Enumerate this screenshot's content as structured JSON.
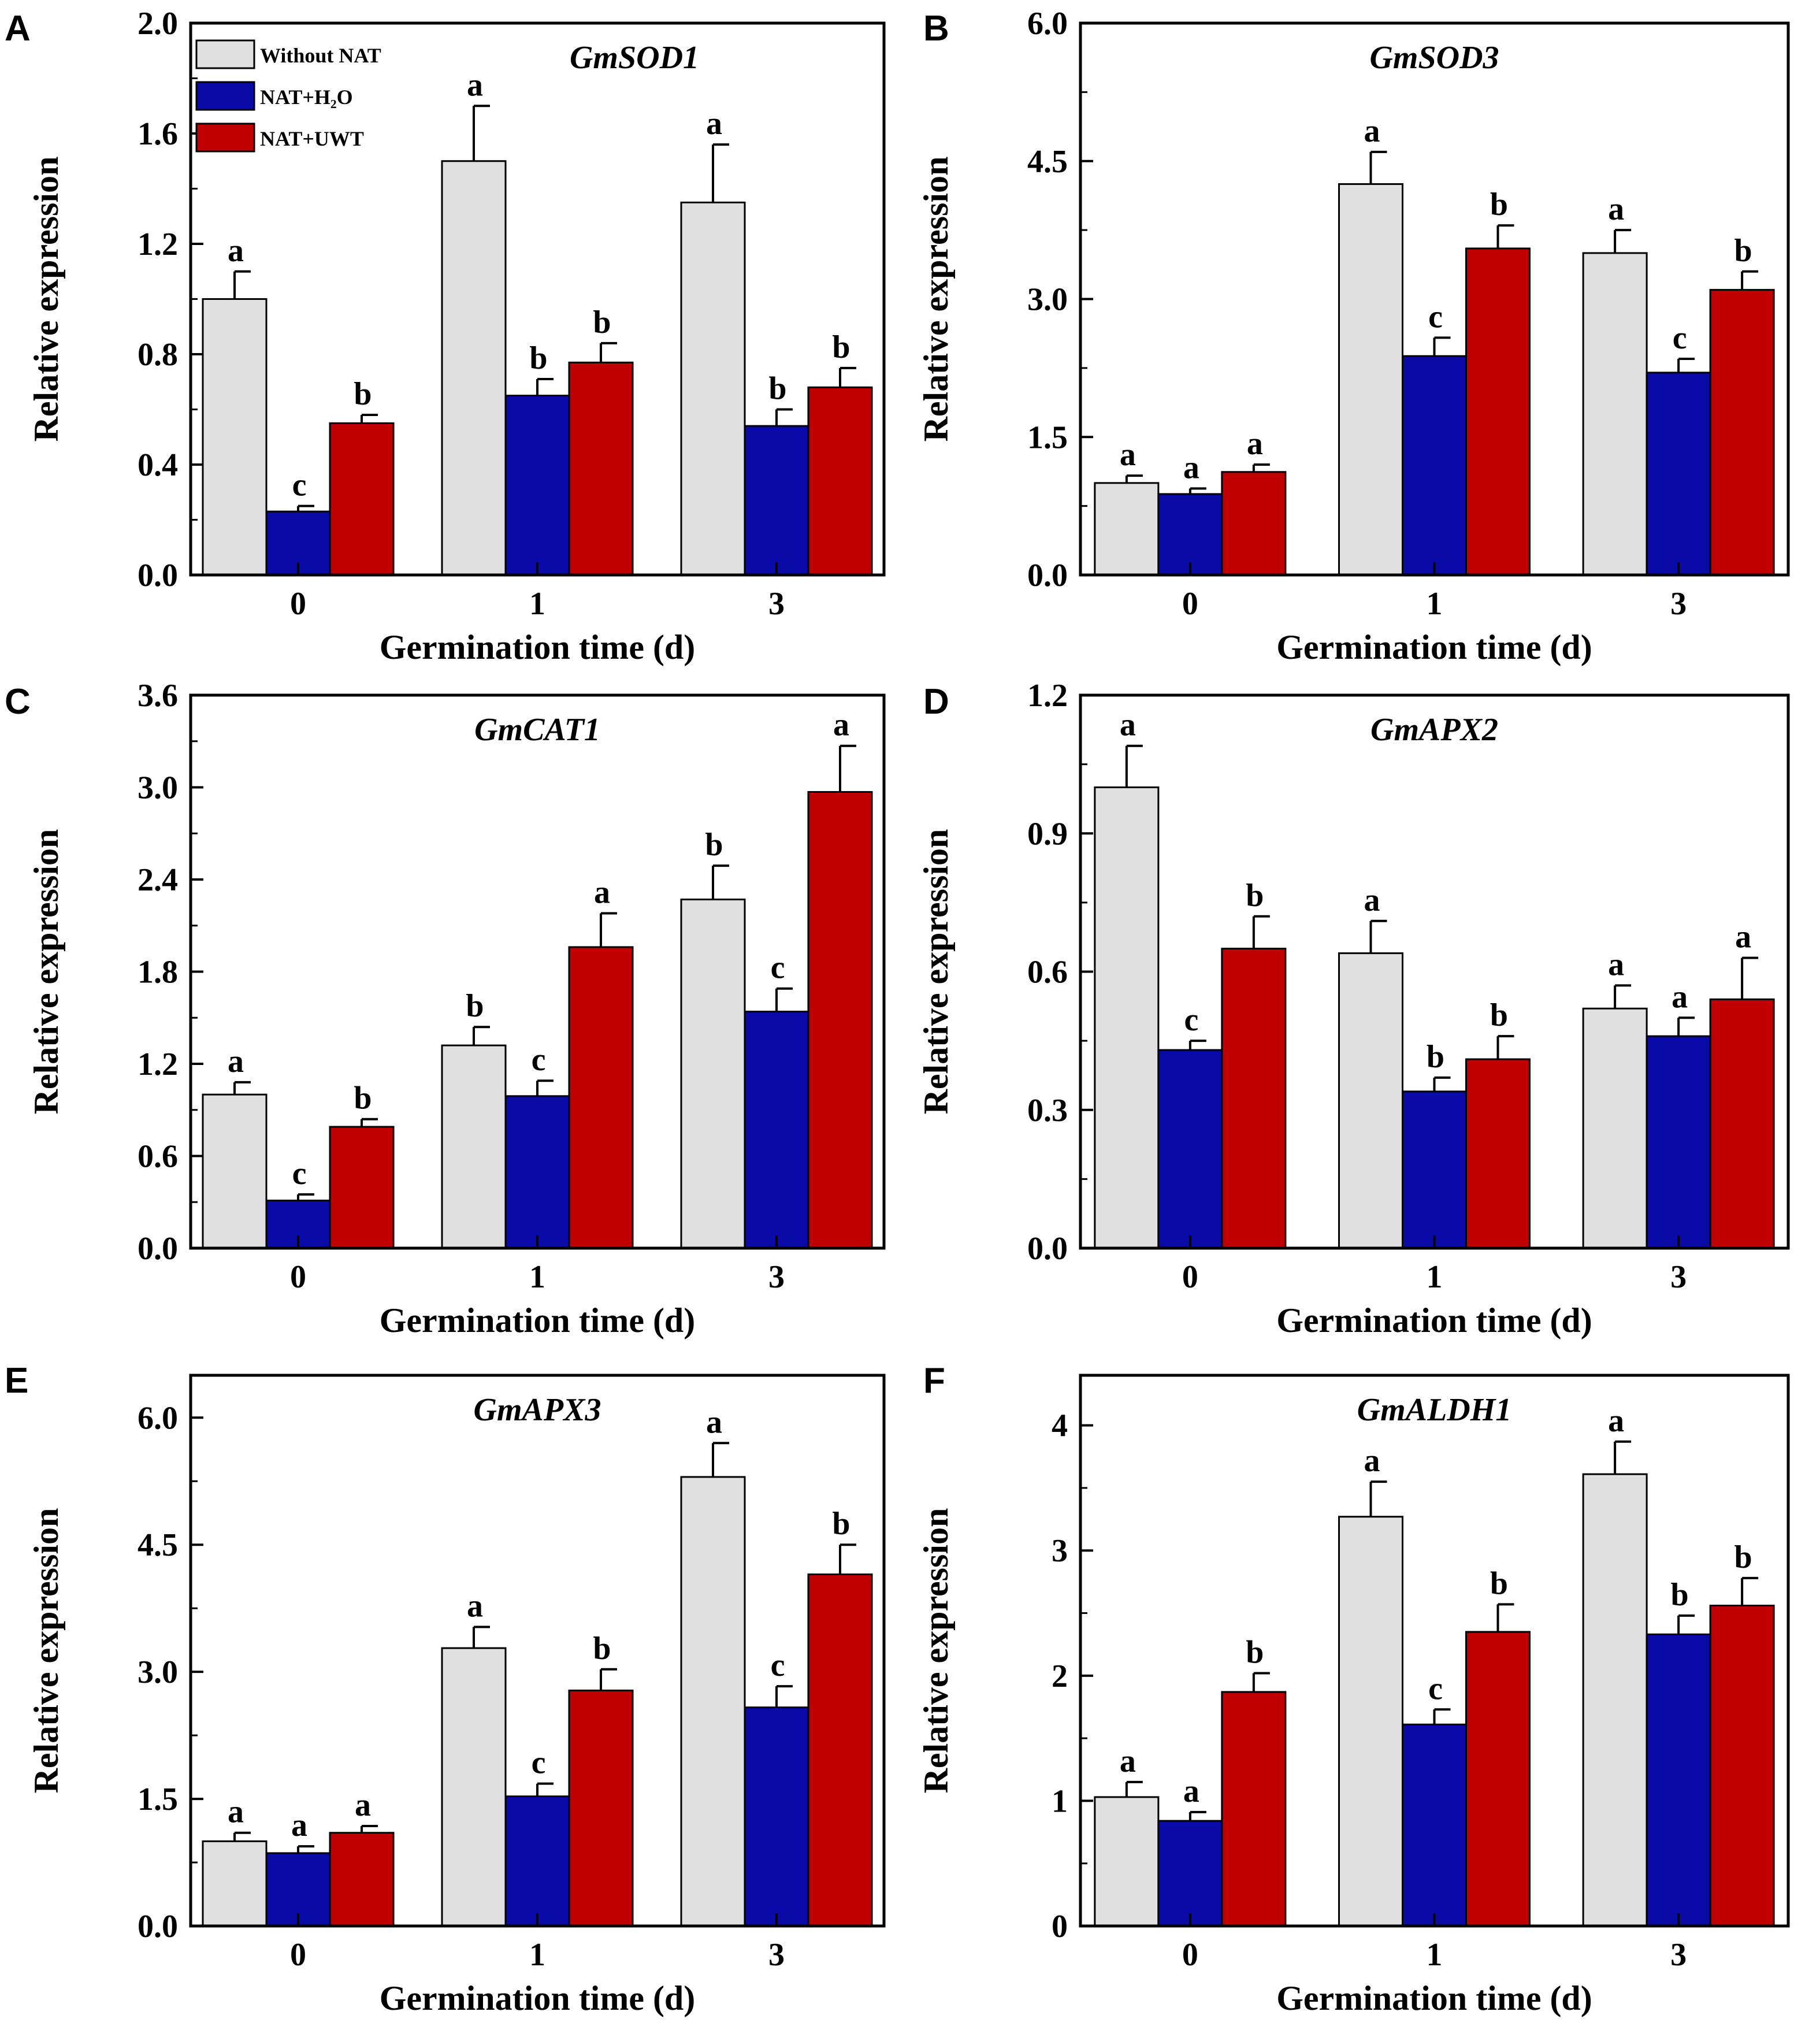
{
  "figure": {
    "series_names": [
      "Without NAT",
      "NAT+H₂O",
      "NAT+UWT"
    ],
    "series_colors": [
      "#e0e0e0",
      "#0a0aa8",
      "#c00000"
    ],
    "legend": {
      "items": [
        {
          "label": "Without NAT",
          "color": "#e0e0e0"
        },
        {
          "label": "NAT+H₂O",
          "color": "#0a0aa8"
        },
        {
          "label": "NAT+UWT",
          "color": "#c00000"
        }
      ],
      "placement": "top-left of panel A"
    }
  },
  "chart_data": [
    {
      "panel": "A",
      "type": "bar",
      "title": "GmSOD1",
      "xlabel": "Germination time (d)",
      "ylabel": "Relative expression",
      "categories": [
        "0",
        "1",
        "3"
      ],
      "ylim": [
        0,
        2.0
      ],
      "yticks": [
        "0.0",
        "0.4",
        "0.8",
        "1.2",
        "1.6",
        "2.0"
      ],
      "series": [
        {
          "name": "Without NAT",
          "values": [
            1.0,
            1.5,
            1.35
          ],
          "errors": [
            0.1,
            0.2,
            0.21
          ],
          "letters": [
            "a",
            "a",
            "a"
          ]
        },
        {
          "name": "NAT+H₂O",
          "values": [
            0.23,
            0.65,
            0.54
          ],
          "errors": [
            0.02,
            0.06,
            0.06
          ],
          "letters": [
            "c",
            "b",
            "b"
          ]
        },
        {
          "name": "NAT+UWT",
          "values": [
            0.55,
            0.77,
            0.68
          ],
          "errors": [
            0.03,
            0.07,
            0.07
          ],
          "letters": [
            "b",
            "b",
            "b"
          ]
        }
      ]
    },
    {
      "panel": "B",
      "type": "bar",
      "title": "GmSOD3",
      "xlabel": "Germination time (d)",
      "ylabel": "Relative expression",
      "categories": [
        "0",
        "1",
        "3"
      ],
      "ylim": [
        0,
        6.0
      ],
      "yticks": [
        "0.0",
        "1.5",
        "3.0",
        "4.5",
        "6.0"
      ],
      "series": [
        {
          "name": "Without NAT",
          "values": [
            1.0,
            4.25,
            3.5
          ],
          "errors": [
            0.08,
            0.35,
            0.25
          ],
          "letters": [
            "a",
            "a",
            "a"
          ]
        },
        {
          "name": "NAT+H₂O",
          "values": [
            0.88,
            2.38,
            2.2
          ],
          "errors": [
            0.06,
            0.2,
            0.15
          ],
          "letters": [
            "a",
            "c",
            "c"
          ]
        },
        {
          "name": "NAT+UWT",
          "values": [
            1.12,
            3.55,
            3.1
          ],
          "errors": [
            0.08,
            0.25,
            0.2
          ],
          "letters": [
            "a",
            "b",
            "b"
          ]
        }
      ]
    },
    {
      "panel": "C",
      "type": "bar",
      "title": "GmCAT1",
      "xlabel": "Germination time (d)",
      "ylabel": "Relative expression",
      "categories": [
        "0",
        "1",
        "3"
      ],
      "ylim": [
        0,
        3.6
      ],
      "yticks": [
        "0.0",
        "0.6",
        "1.2",
        "1.8",
        "2.4",
        "3.0",
        "3.6"
      ],
      "series": [
        {
          "name": "Without NAT",
          "values": [
            1.0,
            1.32,
            2.27
          ],
          "errors": [
            0.08,
            0.12,
            0.22
          ],
          "letters": [
            "a",
            "b",
            "b"
          ]
        },
        {
          "name": "NAT+H₂O",
          "values": [
            0.31,
            0.99,
            1.54
          ],
          "errors": [
            0.04,
            0.1,
            0.15
          ],
          "letters": [
            "c",
            "c",
            "c"
          ]
        },
        {
          "name": "NAT+UWT",
          "values": [
            0.79,
            1.96,
            2.97
          ],
          "errors": [
            0.05,
            0.22,
            0.3
          ],
          "letters": [
            "b",
            "a",
            "a"
          ]
        }
      ]
    },
    {
      "panel": "D",
      "type": "bar",
      "title": "GmAPX2",
      "xlabel": "Germination time (d)",
      "ylabel": "Relative expression",
      "categories": [
        "0",
        "1",
        "3"
      ],
      "ylim": [
        0,
        1.2
      ],
      "yticks": [
        "0.0",
        "0.3",
        "0.6",
        "0.9",
        "1.2"
      ],
      "series": [
        {
          "name": "Without NAT",
          "values": [
            1.0,
            0.64,
            0.52
          ],
          "errors": [
            0.09,
            0.07,
            0.05
          ],
          "letters": [
            "a",
            "a",
            "a"
          ]
        },
        {
          "name": "NAT+H₂O",
          "values": [
            0.43,
            0.34,
            0.46
          ],
          "errors": [
            0.02,
            0.03,
            0.04
          ],
          "letters": [
            "c",
            "b",
            "a"
          ]
        },
        {
          "name": "NAT+UWT",
          "values": [
            0.65,
            0.41,
            0.54
          ],
          "errors": [
            0.07,
            0.05,
            0.09
          ],
          "letters": [
            "b",
            "b",
            "a"
          ]
        }
      ]
    },
    {
      "panel": "E",
      "type": "bar",
      "title": "GmAPX3",
      "xlabel": "Germination time (d)",
      "ylabel": "Relative expression",
      "categories": [
        "0",
        "1",
        "3"
      ],
      "ylim": [
        0,
        6.5
      ],
      "yticks": [
        "0.0",
        "1.5",
        "3.0",
        "4.5",
        "6.0"
      ],
      "series": [
        {
          "name": "Without NAT",
          "values": [
            1.0,
            3.28,
            5.3
          ],
          "errors": [
            0.1,
            0.25,
            0.4
          ],
          "letters": [
            "a",
            "a",
            "a"
          ]
        },
        {
          "name": "NAT+H₂O",
          "values": [
            0.86,
            1.53,
            2.58
          ],
          "errors": [
            0.08,
            0.15,
            0.25
          ],
          "letters": [
            "a",
            "c",
            "c"
          ]
        },
        {
          "name": "NAT+UWT",
          "values": [
            1.1,
            2.78,
            4.15
          ],
          "errors": [
            0.08,
            0.25,
            0.35
          ],
          "letters": [
            "a",
            "b",
            "b"
          ]
        }
      ]
    },
    {
      "panel": "F",
      "type": "bar",
      "title": "GmALDH1",
      "xlabel": "Germination time (d)",
      "ylabel": "Relative expression",
      "categories": [
        "0",
        "1",
        "3"
      ],
      "ylim": [
        0,
        4.4
      ],
      "yticks": [
        "0",
        "1",
        "2",
        "3",
        "4"
      ],
      "series": [
        {
          "name": "Without NAT",
          "values": [
            1.03,
            3.27,
            3.61
          ],
          "errors": [
            0.12,
            0.28,
            0.26
          ],
          "letters": [
            "a",
            "a",
            "a"
          ]
        },
        {
          "name": "NAT+H₂O",
          "values": [
            0.84,
            1.61,
            2.33
          ],
          "errors": [
            0.07,
            0.12,
            0.15
          ],
          "letters": [
            "a",
            "c",
            "b"
          ]
        },
        {
          "name": "NAT+UWT",
          "values": [
            1.87,
            2.35,
            2.56
          ],
          "errors": [
            0.15,
            0.22,
            0.22
          ],
          "letters": [
            "b",
            "b",
            "b"
          ]
        }
      ]
    }
  ]
}
